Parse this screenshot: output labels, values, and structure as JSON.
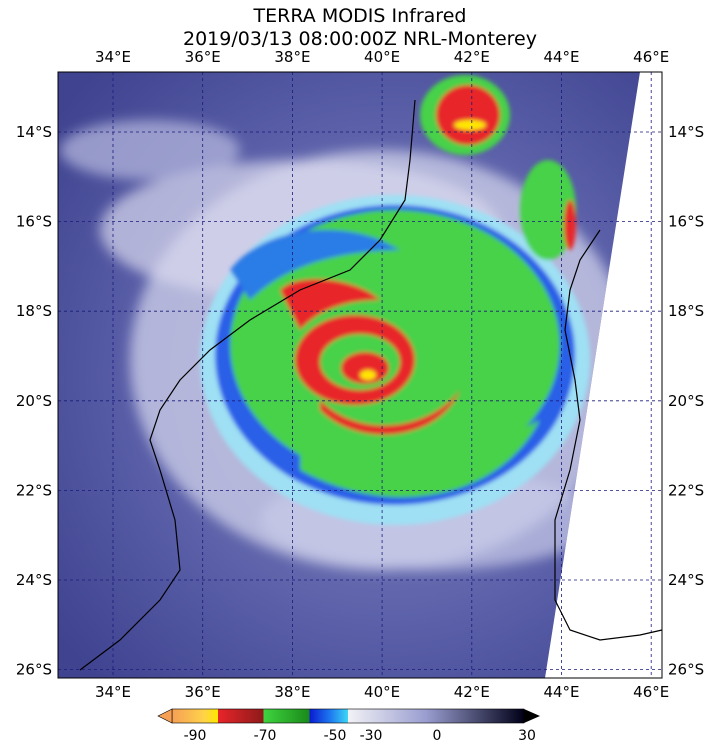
{
  "header": {
    "title": "TERRA MODIS Infrared",
    "subtitle": "2019/03/13 08:00:00Z NRL-Monterey"
  },
  "map": {
    "longitude_labels": [
      "34°E",
      "36°E",
      "38°E",
      "40°E",
      "42°E",
      "44°E",
      "46°E"
    ],
    "latitude_labels": [
      "14°S",
      "16°S",
      "18°S",
      "20°S",
      "22°S",
      "24°S",
      "26°S"
    ]
  },
  "colorbar": {
    "tick_labels": [
      "-90",
      "-70",
      "-50",
      "-30",
      "0",
      "30"
    ]
  }
}
